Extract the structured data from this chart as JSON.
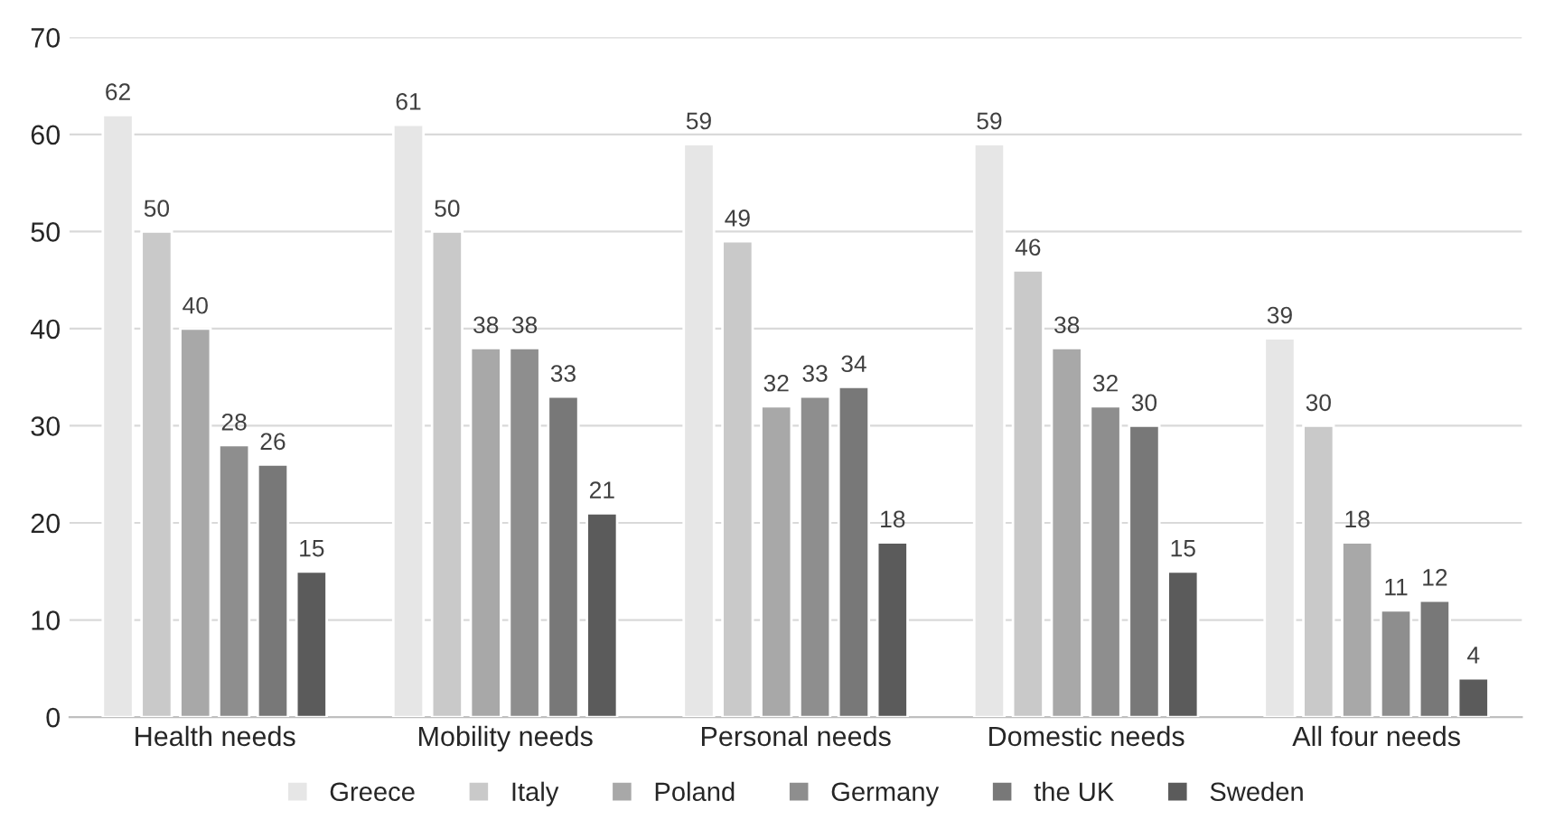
{
  "chart_data": {
    "type": "bar",
    "categories": [
      "Health needs",
      "Mobility needs",
      "Personal needs",
      "Domestic needs",
      "All four needs"
    ],
    "series": [
      {
        "name": "Greece",
        "color": "#e6e6e6",
        "values": [
          62,
          61,
          59,
          59,
          39
        ]
      },
      {
        "name": "Italy",
        "color": "#c9c9c9",
        "values": [
          50,
          50,
          49,
          46,
          30
        ]
      },
      {
        "name": "Poland",
        "color": "#a8a8a8",
        "values": [
          40,
          38,
          32,
          38,
          18
        ]
      },
      {
        "name": "Germany",
        "color": "#8e8e8e",
        "values": [
          28,
          38,
          33,
          32,
          11
        ]
      },
      {
        "name": "the UK",
        "color": "#787878",
        "values": [
          26,
          33,
          34,
          30,
          12
        ]
      },
      {
        "name": "Sweden",
        "color": "#5b5b5b",
        "values": [
          15,
          21,
          18,
          15,
          4
        ]
      }
    ],
    "ylim": [
      0,
      70
    ],
    "yticks": [
      0,
      10,
      20,
      30,
      40,
      50,
      60,
      70
    ],
    "grid": "y",
    "legend": "bottom",
    "data_labels": true
  }
}
